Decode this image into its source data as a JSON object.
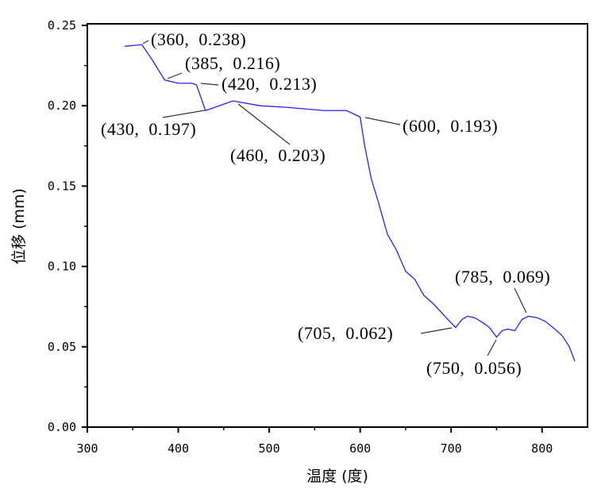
{
  "chart_data": {
    "type": "line",
    "title": "",
    "xlabel": "温度 (度)",
    "ylabel": "位移 (mm)",
    "xlim": [
      300,
      850
    ],
    "ylim": [
      0,
      0.25
    ],
    "xticks": [
      300,
      400,
      500,
      600,
      700,
      800
    ],
    "xtick_labels": [
      "300",
      "400",
      "500",
      "600",
      "700",
      "800"
    ],
    "yticks": [
      0,
      0.05,
      0.1,
      0.15,
      0.2,
      0.25
    ],
    "ytick_labels": [
      "0.00",
      "0.05",
      "0.10",
      "0.15",
      "0.20",
      "0.25"
    ],
    "grid": false,
    "line_color": "#2222ff",
    "series": [
      {
        "name": "位移",
        "x": [
          341,
          360,
          372,
          385,
          400,
          415,
          420,
          430,
          445,
          460,
          470,
          490,
          520,
          540,
          560,
          585,
          600,
          605,
          612,
          620,
          630,
          640,
          650,
          660,
          670,
          680,
          690,
          698,
          705,
          712,
          718,
          726,
          735,
          742,
          750,
          756,
          762,
          770,
          778,
          785,
          795,
          803,
          812,
          822,
          830,
          836
        ],
        "y": [
          0.237,
          0.238,
          0.228,
          0.216,
          0.214,
          0.214,
          0.213,
          0.197,
          0.2,
          0.203,
          0.202,
          0.2,
          0.199,
          0.198,
          0.197,
          0.197,
          0.193,
          0.175,
          0.155,
          0.14,
          0.12,
          0.11,
          0.097,
          0.092,
          0.082,
          0.077,
          0.071,
          0.066,
          0.062,
          0.067,
          0.069,
          0.068,
          0.065,
          0.062,
          0.056,
          0.06,
          0.061,
          0.06,
          0.067,
          0.069,
          0.068,
          0.066,
          0.062,
          0.057,
          0.05,
          0.041
        ]
      }
    ],
    "annotations": [
      {
        "x": 360,
        "y": 0.238,
        "label": "(360,  0.238)"
      },
      {
        "x": 385,
        "y": 0.216,
        "label": "(385,  0.216)"
      },
      {
        "x": 420,
        "y": 0.213,
        "label": "(420,  0.213)"
      },
      {
        "x": 430,
        "y": 0.197,
        "label": "(430,  0.197)"
      },
      {
        "x": 460,
        "y": 0.203,
        "label": "(460,  0.203)"
      },
      {
        "x": 600,
        "y": 0.193,
        "label": "(600,  0.193)"
      },
      {
        "x": 705,
        "y": 0.062,
        "label": "(705,  0.062)"
      },
      {
        "x": 750,
        "y": 0.056,
        "label": "(750,  0.056)"
      },
      {
        "x": 785,
        "y": 0.069,
        "label": "(785,  0.069)"
      }
    ]
  }
}
